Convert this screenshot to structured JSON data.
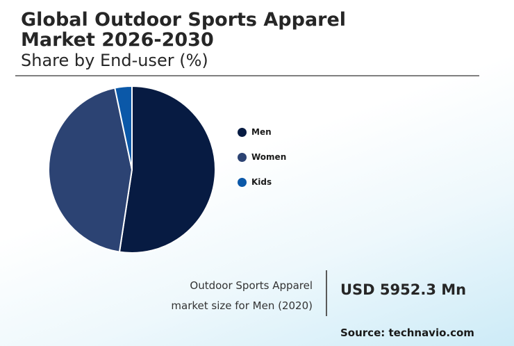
{
  "header": {
    "title_line1": "Global Outdoor Sports Apparel",
    "title_line2": "Market 2026-2030",
    "subtitle": "Share by End-user (%)"
  },
  "chart_data": {
    "type": "pie",
    "title": "Global Outdoor Sports Apparel Market 2026-2030",
    "subtitle": "Share by End-user (%)",
    "categories": [
      "Men",
      "Women",
      "Kids"
    ],
    "values": [
      52.4,
      44.3,
      3.3
    ],
    "colors": [
      "#071b42",
      "#2c4373",
      "#0b58a8"
    ],
    "legend_position": "right"
  },
  "info": {
    "label_line1": "Outdoor Sports Apparel",
    "label_line2": "market size for Men (2020)",
    "value": "USD 5952.3 Mn"
  },
  "source": "Source: technavio.com"
}
